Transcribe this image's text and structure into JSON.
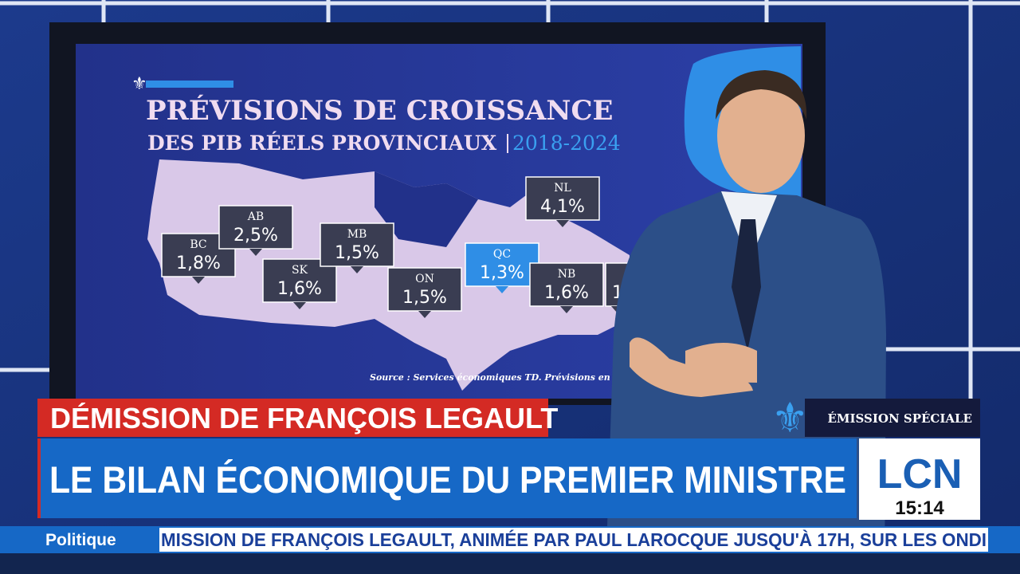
{
  "screen": {
    "title_line1": "PRÉVISIONS DE CROISSANCE",
    "title_line2": "DES PIB RÉELS PROVINCIAUX",
    "period": "2018-2024",
    "source": "Source : Services économiques TD. Prévisions en date",
    "provinces": [
      {
        "code": "BC",
        "value": "1,8%"
      },
      {
        "code": "AB",
        "value": "2,5%"
      },
      {
        "code": "SK",
        "value": "1,6%"
      },
      {
        "code": "MB",
        "value": "1,5%"
      },
      {
        "code": "ON",
        "value": "1,5%"
      },
      {
        "code": "QC",
        "value": "1,3%"
      },
      {
        "code": "NL",
        "value": "4,1%"
      },
      {
        "code": "NB",
        "value": "1,6%"
      },
      {
        "value": "1"
      }
    ]
  },
  "banner": {
    "kicker": "DÉMISSION DE FRANÇOIS LEGAULT",
    "headline": "LE BILAN ÉCONOMIQUE DU PREMIER MINISTRE",
    "show": "ÉMISSION SPÉCIALE",
    "logo": "LCN",
    "time": "15:14"
  },
  "ticker": {
    "section": "Politique",
    "text": "MISSION DE FRANÇOIS LEGAULT, ANIMÉE PAR PAUL LAROCQUE JUSQU'À 17H, SUR LES ONDI"
  }
}
